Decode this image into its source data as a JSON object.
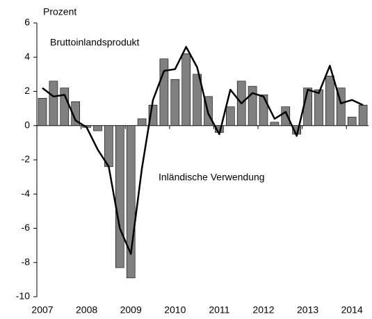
{
  "chart_data": {
    "type": "bar-line",
    "y_label": "Prozent",
    "categories": [
      "2007",
      null,
      null,
      null,
      "2008",
      null,
      null,
      null,
      "2009",
      null,
      null,
      null,
      "2010",
      null,
      null,
      null,
      "2011",
      null,
      null,
      null,
      "2012",
      null,
      null,
      null,
      "2013",
      null,
      null,
      null,
      "2014",
      null
    ],
    "series": [
      {
        "name": "Bruttoinlandsprodukt",
        "type": "bar",
        "color": "#808080",
        "values": [
          1.6,
          2.6,
          2.2,
          1.4,
          -0.1,
          -0.3,
          -2.4,
          -8.3,
          -8.9,
          0.4,
          1.2,
          3.9,
          2.7,
          4.2,
          3.0,
          1.7,
          -0.4,
          1.1,
          2.6,
          2.3,
          1.8,
          0.2,
          1.1,
          -0.5,
          2.2,
          2.1,
          2.9,
          2.2,
          0.5,
          1.2
        ]
      },
      {
        "name": "Inländische Verwendung",
        "type": "line",
        "color": "#000000",
        "values": [
          2.2,
          1.7,
          1.8,
          0.3,
          -0.1,
          -1.4,
          -2.4,
          -6.0,
          -7.5,
          -2.5,
          1.5,
          3.2,
          3.3,
          4.6,
          3.4,
          0.7,
          -0.5,
          2.1,
          1.3,
          1.9,
          1.7,
          0.4,
          0.8,
          -0.6,
          2.1,
          1.9,
          3.5,
          1.3,
          1.5,
          1.2
        ]
      }
    ],
    "ylim": [
      -10,
      6
    ],
    "yticks": [
      -10,
      -8,
      -6,
      -4,
      -2,
      0,
      2,
      4,
      6
    ],
    "grid": false
  }
}
